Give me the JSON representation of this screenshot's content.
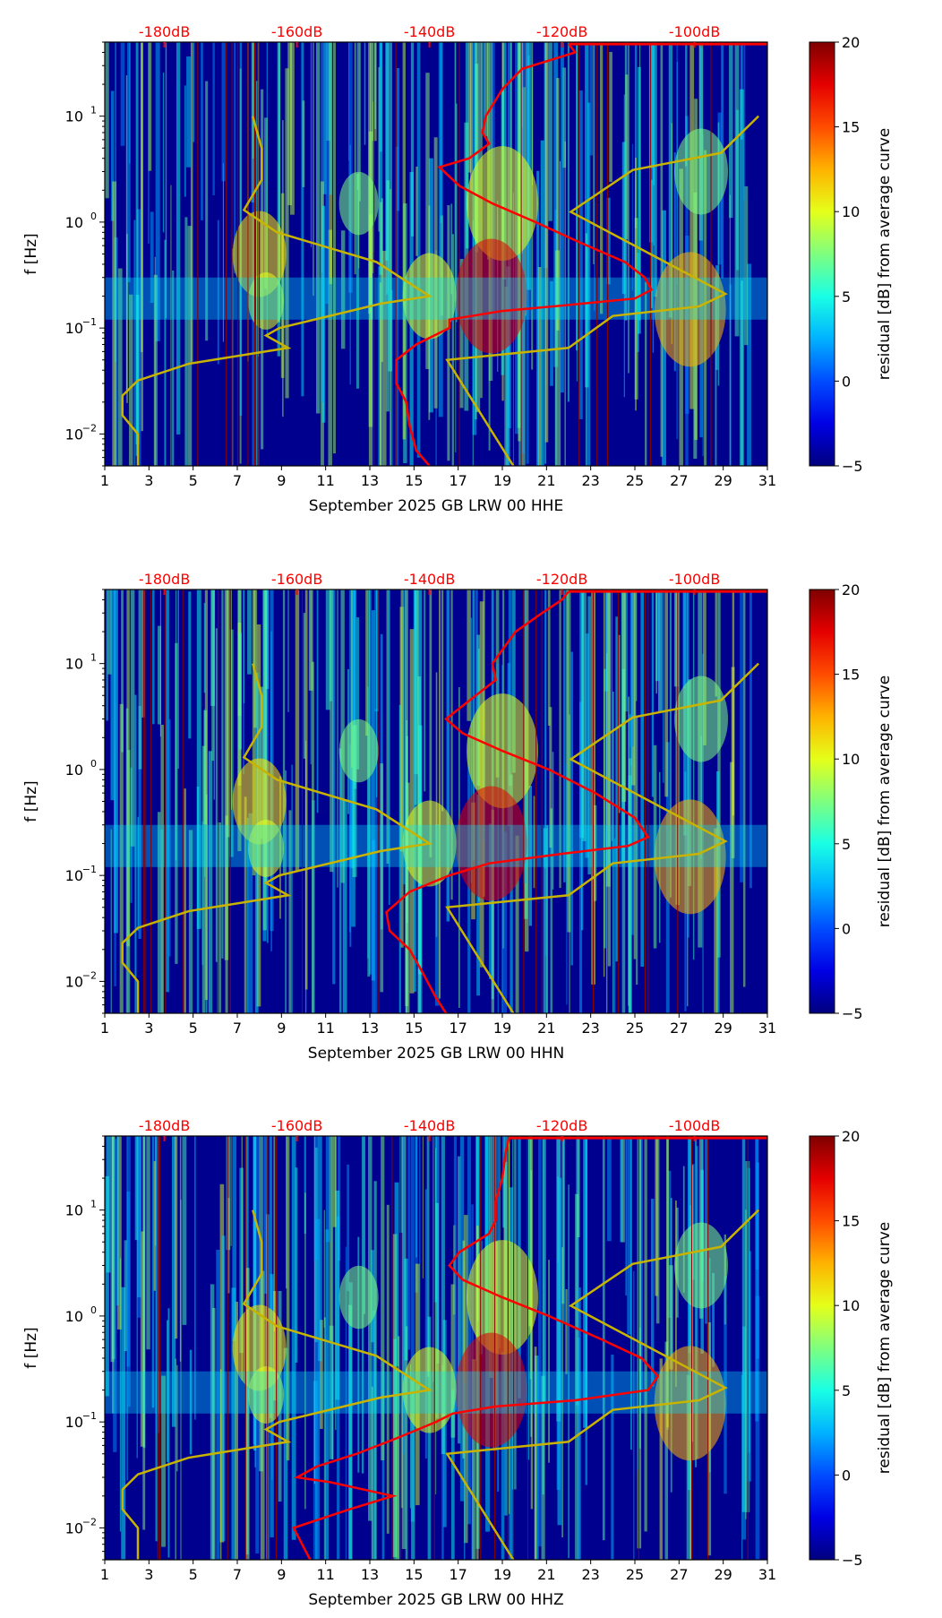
{
  "chart_data": [
    {
      "type": "heatmap",
      "title": "September 2025 GB LRW 00 HHE",
      "xlabel": "September 2025 GB LRW 00 HHE",
      "ylabel": "f [Hz]",
      "red_curve": [
        [
          -119,
          48
        ],
        [
          -118,
          40
        ],
        [
          -121,
          35
        ],
        [
          -126,
          28
        ],
        [
          -129,
          18
        ],
        [
          -131.5,
          10
        ],
        [
          -132,
          7
        ],
        [
          -131,
          5.5
        ],
        [
          -134,
          4
        ],
        [
          -138.5,
          3.3
        ],
        [
          -135.5,
          2.2
        ],
        [
          -130.5,
          1.5
        ],
        [
          -124,
          1
        ],
        [
          -117.5,
          0.65
        ],
        [
          -110.5,
          0.42
        ],
        [
          -107.5,
          0.3
        ],
        [
          -106.5,
          0.23
        ],
        [
          -109,
          0.19
        ],
        [
          -119,
          0.165
        ],
        [
          -129,
          0.145
        ],
        [
          -137,
          0.12
        ],
        [
          -137,
          0.1
        ],
        [
          -142,
          0.07
        ],
        [
          -145,
          0.05
        ],
        [
          -145,
          0.03
        ],
        [
          -143.5,
          0.02
        ],
        [
          -143,
          0.012
        ],
        [
          -142,
          0.007
        ],
        [
          -140,
          0.005
        ]
      ]
    },
    {
      "type": "heatmap",
      "title": "September 2025 GB LRW 00 HHN",
      "xlabel": "September 2025 GB LRW 00 HHN",
      "ylabel": "f [Hz]",
      "red_curve": [
        [
          -119,
          48
        ],
        [
          -120,
          40
        ],
        [
          -123,
          30
        ],
        [
          -127,
          20
        ],
        [
          -130.5,
          10
        ],
        [
          -130,
          7
        ],
        [
          -133,
          5
        ],
        [
          -137.5,
          3
        ],
        [
          -135,
          2.2
        ],
        [
          -129,
          1.5
        ],
        [
          -122,
          1
        ],
        [
          -115,
          0.6
        ],
        [
          -109,
          0.35
        ],
        [
          -107,
          0.23
        ],
        [
          -110,
          0.19
        ],
        [
          -120,
          0.16
        ],
        [
          -131,
          0.13
        ],
        [
          -137,
          0.1
        ],
        [
          -143,
          0.07
        ],
        [
          -146.5,
          0.045
        ],
        [
          -146,
          0.03
        ],
        [
          -143,
          0.02
        ],
        [
          -141,
          0.012
        ],
        [
          -139,
          0.007
        ],
        [
          -137.5,
          0.005
        ]
      ]
    },
    {
      "type": "heatmap",
      "title": "September 2025 GB LRW 00 HHZ",
      "xlabel": "September 2025 GB LRW 00 HHZ",
      "ylabel": "f [Hz]",
      "red_curve": [
        [
          -128,
          48
        ],
        [
          -128.5,
          35
        ],
        [
          -129,
          20
        ],
        [
          -130,
          12
        ],
        [
          -130,
          8
        ],
        [
          -131,
          6
        ],
        [
          -135.5,
          4
        ],
        [
          -137,
          3
        ],
        [
          -135,
          2.2
        ],
        [
          -129,
          1.5
        ],
        [
          -122,
          1
        ],
        [
          -114,
          0.6
        ],
        [
          -108,
          0.4
        ],
        [
          -105.5,
          0.27
        ],
        [
          -107,
          0.2
        ],
        [
          -118,
          0.16
        ],
        [
          -130,
          0.14
        ],
        [
          -136.5,
          0.12
        ],
        [
          -139,
          0.1
        ],
        [
          -145,
          0.07
        ],
        [
          -151,
          0.05
        ],
        [
          -157,
          0.038
        ],
        [
          -160,
          0.03
        ],
        [
          -155,
          0.027
        ],
        [
          -145.5,
          0.02
        ],
        [
          -152,
          0.015
        ],
        [
          -160.5,
          0.01
        ],
        [
          -158,
          0.005
        ]
      ]
    }
  ],
  "shared": {
    "x_ticks": [
      "1",
      "3",
      "5",
      "7",
      "9",
      "11",
      "13",
      "15",
      "17",
      "19",
      "21",
      "23",
      "25",
      "27",
      "29",
      "31"
    ],
    "xlim": [
      1,
      31
    ],
    "y_ticks": [
      {
        "label": "10",
        "exp": "−2",
        "value": 0.01
      },
      {
        "label": "10",
        "exp": "−1",
        "value": 0.1
      },
      {
        "label": "10",
        "exp": "0",
        "value": 1
      },
      {
        "label": "10",
        "exp": "1",
        "value": 10
      }
    ],
    "ylim": [
      0.005,
      50
    ],
    "top_ticks": [
      {
        "label": "-180dB",
        "db": -180
      },
      {
        "label": "-160dB",
        "db": -160
      },
      {
        "label": "-140dB",
        "db": -140
      },
      {
        "label": "-120dB",
        "db": -120
      },
      {
        "label": "-100dB",
        "db": -100
      }
    ],
    "db_range": [
      -189,
      -89
    ],
    "colorbar": {
      "label": "residual [dB] from average curve",
      "ticks": [
        "20",
        "15",
        "10",
        "5",
        "0",
        "−5"
      ],
      "range": [
        -5,
        20
      ]
    },
    "nlnm": [
      [
        7.7,
        10
      ],
      [
        8.1,
        5
      ],
      [
        8.1,
        2.5
      ],
      [
        7.3,
        1.3
      ],
      [
        8.8,
        0.8
      ],
      [
        13.3,
        0.42
      ],
      [
        15.7,
        0.2
      ],
      [
        13.5,
        0.17
      ],
      [
        8.9,
        0.1
      ],
      [
        8.3,
        0.085
      ],
      [
        9.3,
        0.065
      ],
      [
        4.8,
        0.046
      ],
      [
        2.5,
        0.032
      ],
      [
        1.8,
        0.023
      ],
      [
        1.8,
        0.015
      ],
      [
        2.5,
        0.01
      ],
      [
        2.5,
        0.005
      ]
    ],
    "nhnm": [
      [
        30.6,
        10
      ],
      [
        28.9,
        4.5
      ],
      [
        24.9,
        3.1
      ],
      [
        22.1,
        1.25
      ],
      [
        29.1,
        0.21
      ],
      [
        27.9,
        0.16
      ],
      [
        24,
        0.13
      ],
      [
        22,
        0.065
      ],
      [
        16.5,
        0.05
      ],
      [
        19.5,
        0.005
      ]
    ],
    "colors": {
      "red": "#ff0000",
      "model": "#c8b400",
      "bg": "#00008f"
    }
  }
}
